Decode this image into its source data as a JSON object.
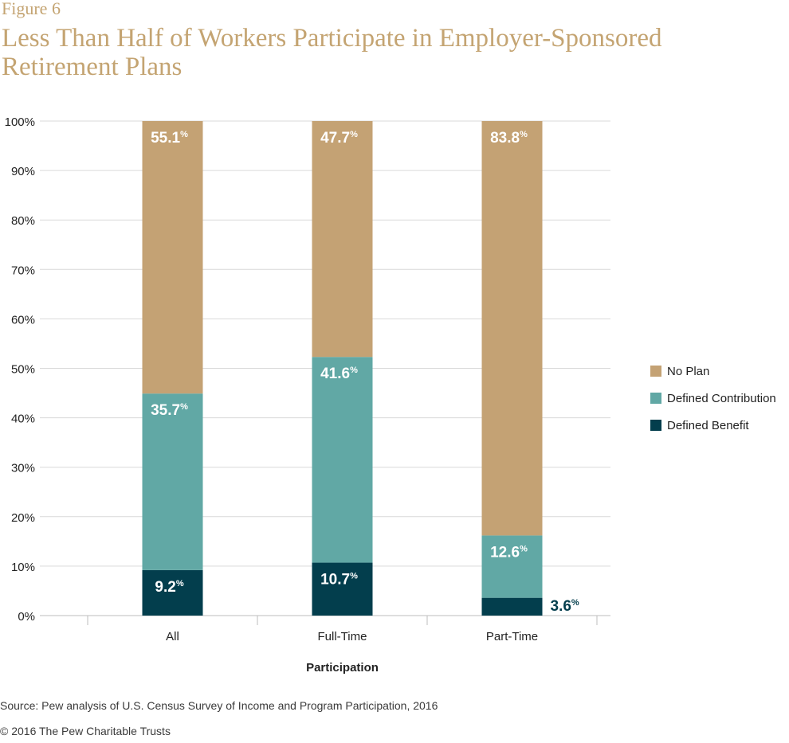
{
  "figure_label": "Figure 6",
  "title": "Less Than Half of Workers Participate in Employer-Sponsored Retirement Plans",
  "source": "Source: Pew analysis of U.S. Census Survey of Income and Program Participation, 2016",
  "copyright": "© 2016 The Pew Charitable Trusts",
  "colors": {
    "no_plan": "#c4a274",
    "defined_contribution": "#61a8a5",
    "defined_benefit": "#033e4d",
    "grid": "#d9d9d9",
    "label_on_bar": "#ffffff",
    "label_outside": "#033e4d"
  },
  "chart_data": {
    "type": "bar",
    "stacked": true,
    "categories": [
      "All",
      "Full-Time",
      "Part-Time"
    ],
    "series": [
      {
        "name": "Defined Benefit",
        "values": [
          9.2,
          10.7,
          3.6
        ]
      },
      {
        "name": "Defined Contribution",
        "values": [
          35.7,
          41.6,
          12.6
        ]
      },
      {
        "name": "No Plan",
        "values": [
          55.1,
          47.7,
          83.8
        ]
      }
    ],
    "xlabel": "Participation",
    "ylabel": "",
    "ylim": [
      0,
      100
    ],
    "yticks": [
      "0%",
      "10%",
      "20%",
      "30%",
      "40%",
      "50%",
      "60%",
      "70%",
      "80%",
      "90%",
      "100%"
    ],
    "value_suffix": "%",
    "grid": true,
    "legend_position": "right",
    "legend_order": [
      "No Plan",
      "Defined Contribution",
      "Defined Benefit"
    ]
  }
}
